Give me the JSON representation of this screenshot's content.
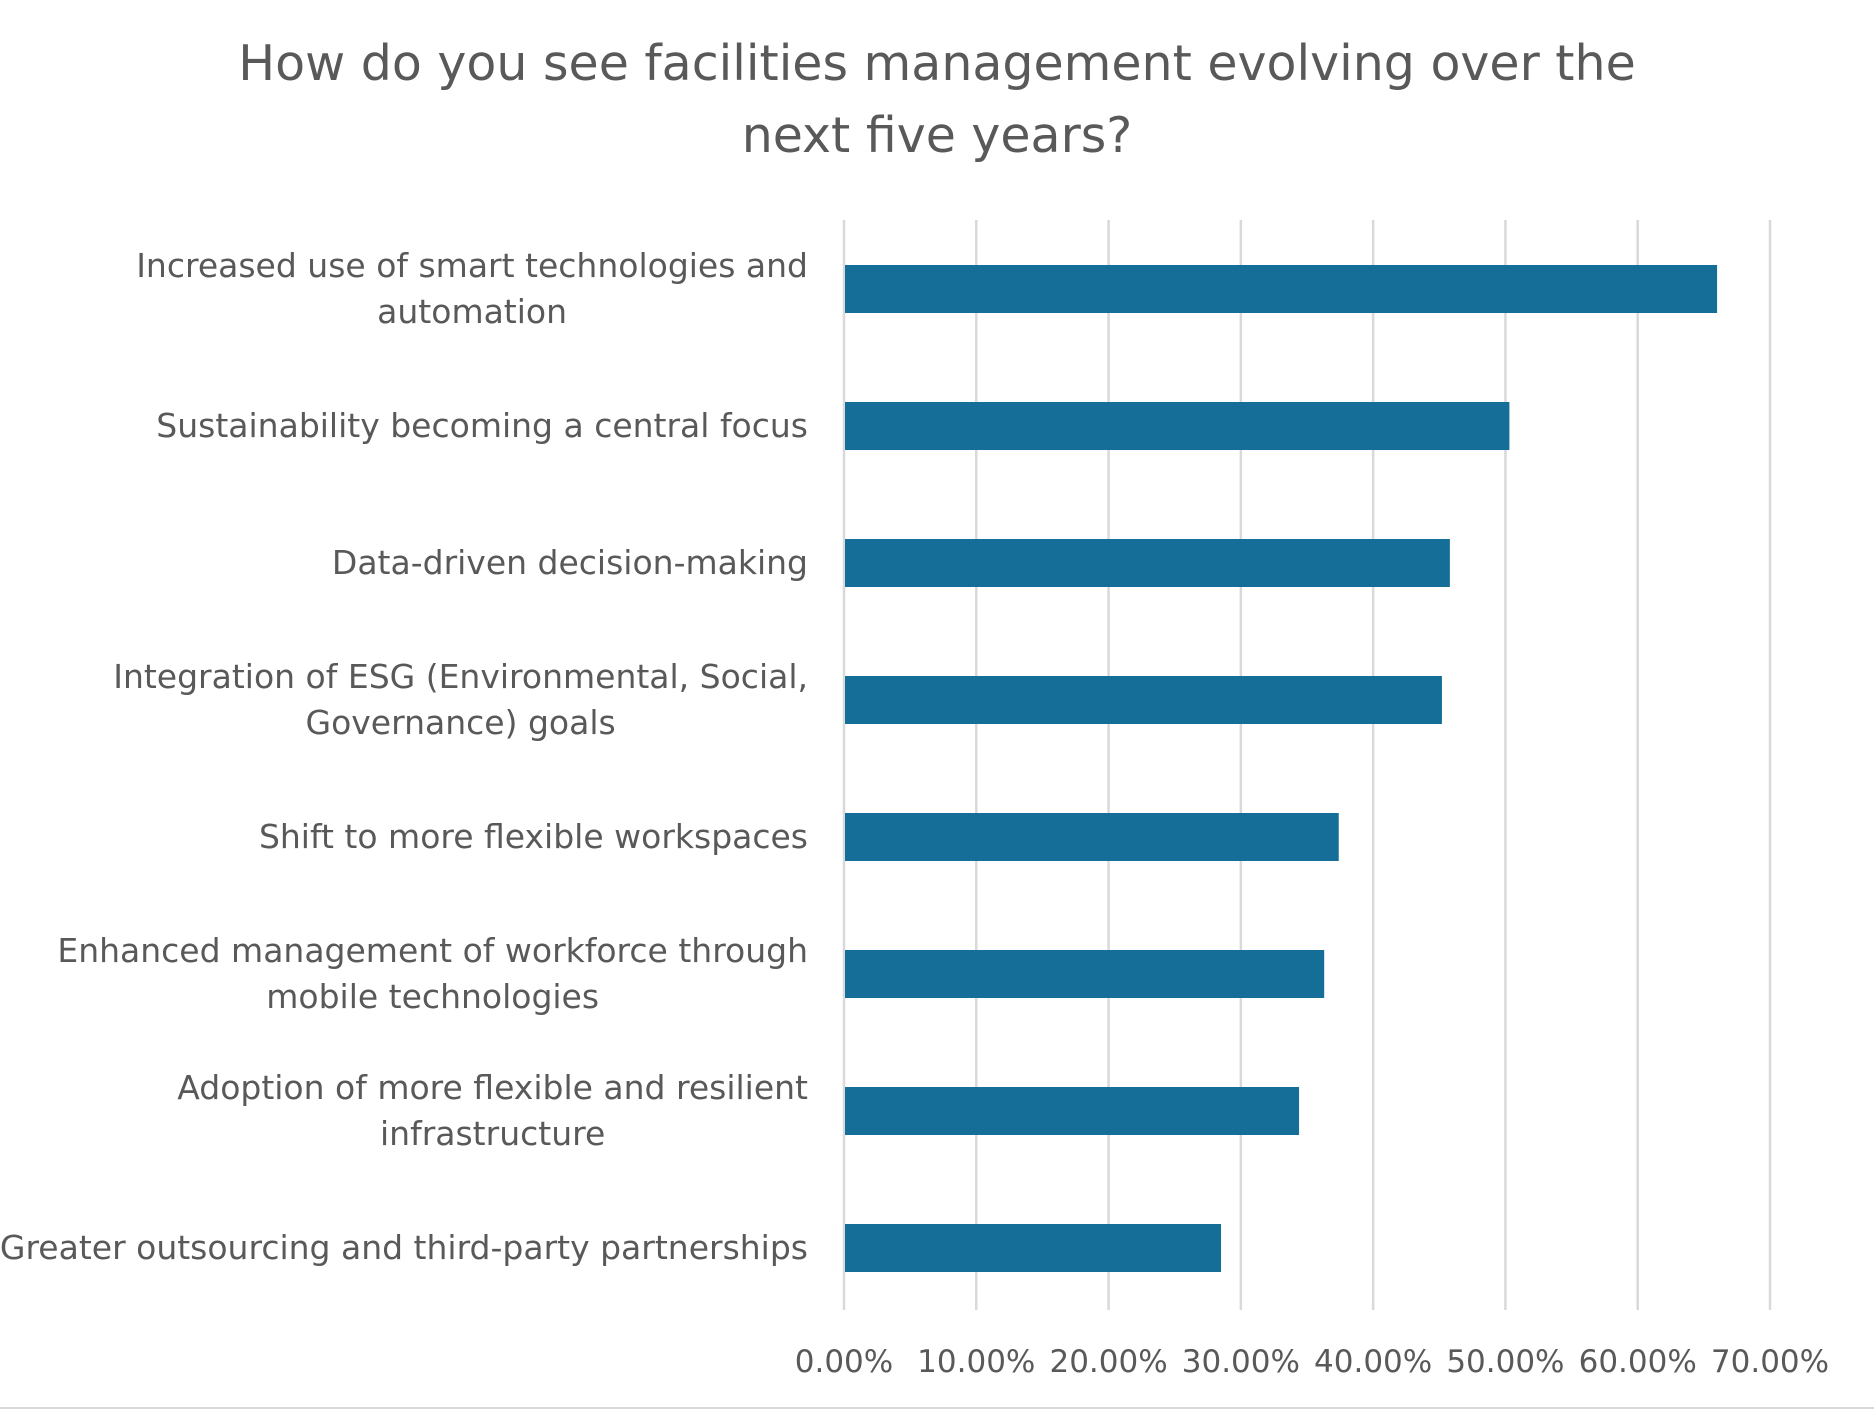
{
  "chart_data": {
    "type": "bar",
    "orientation": "horizontal",
    "title": "How do you see facilities management evolving over the next five years?",
    "title_lines": [
      "How do you see facilities management evolving over the",
      "next five years?"
    ],
    "categories": [
      "Increased use of smart technologies and automation",
      "Sustainability becoming a central focus",
      "Data-driven decision-making",
      "Integration of ESG (Environmental, Social, Governance) goals",
      "Shift to more flexible workspaces",
      "Enhanced management of workforce through mobile technologies",
      "Adoption of more flexible and resilient infrastructure",
      "Greater outsourcing and third-party partnerships"
    ],
    "category_label_lines": [
      [
        "Increased use of smart technologies and",
        "automation"
      ],
      [
        "Sustainability becoming a central focus"
      ],
      [
        "Data-driven decision-making"
      ],
      [
        "Integration of ESG (Environmental, Social,",
        "Governance) goals"
      ],
      [
        "Shift to more flexible workspaces"
      ],
      [
        "Enhanced management of workforce through",
        "mobile technologies"
      ],
      [
        "Adoption of more flexible and resilient",
        "infrastructure"
      ],
      [
        "Greater outsourcing and third-party partnerships"
      ]
    ],
    "values": [
      66.0,
      50.3,
      45.8,
      45.2,
      37.4,
      36.3,
      34.4,
      28.5
    ],
    "xlim": [
      0,
      70
    ],
    "xticks": [
      0,
      10,
      20,
      30,
      40,
      50,
      60,
      70
    ],
    "xtick_labels": [
      "0.00%",
      "10.00%",
      "20.00%",
      "30.00%",
      "40.00%",
      "50.00%",
      "60.00%",
      "70.00%"
    ],
    "xlabel": "",
    "ylabel": "",
    "grid": true,
    "legend": "none",
    "bar_color": "#156e97",
    "text_color": "#595959",
    "grid_color": "#d9d9d9"
  }
}
